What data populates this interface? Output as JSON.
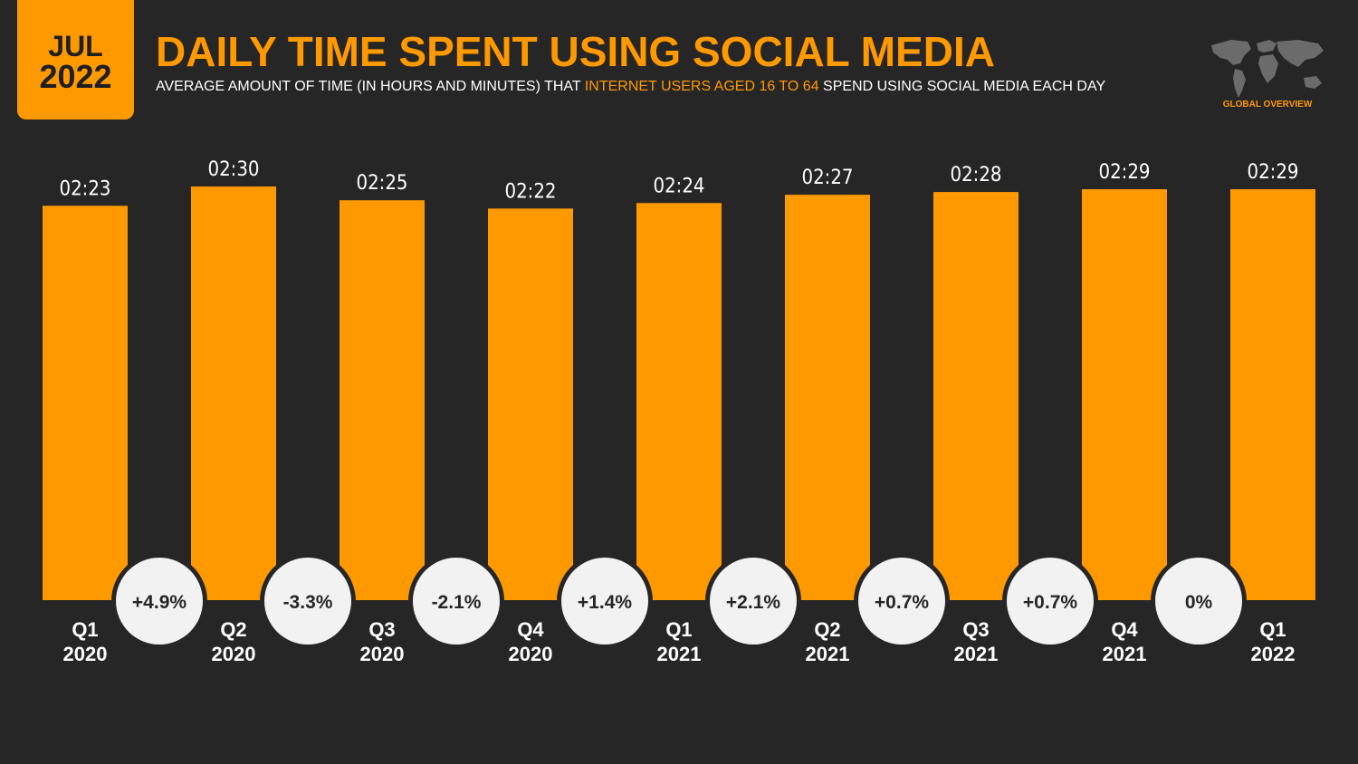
{
  "header": {
    "badge_month": "JUL",
    "badge_year": "2022",
    "title": "DAILY TIME SPENT USING SOCIAL MEDIA",
    "subtitle_pre": "AVERAGE AMOUNT OF TIME (IN HOURS AND MINUTES) THAT ",
    "subtitle_highlight": "INTERNET USERS AGED 16 TO 64",
    "subtitle_post": " SPEND USING SOCIAL MEDIA EACH DAY",
    "logo_label": "GLOBAL OVERVIEW",
    "logo_icon": "world-map-icon"
  },
  "colors": {
    "background": "#262626",
    "accent": "#FF9900",
    "circle": "#F2F2F2",
    "text": "#FFFFFF"
  },
  "chart_data": {
    "type": "bar",
    "categories": [
      [
        "Q1",
        "2020"
      ],
      [
        "Q2",
        "2020"
      ],
      [
        "Q3",
        "2020"
      ],
      [
        "Q4",
        "2020"
      ],
      [
        "Q1",
        "2021"
      ],
      [
        "Q2",
        "2021"
      ],
      [
        "Q3",
        "2021"
      ],
      [
        "Q4",
        "2021"
      ],
      [
        "Q1",
        "2022"
      ]
    ],
    "values_minutes": [
      143,
      150,
      145,
      142,
      144,
      147,
      148,
      149,
      149
    ],
    "value_labels": [
      "02:23",
      "02:30",
      "02:25",
      "02:22",
      "02:24",
      "02:27",
      "02:28",
      "02:29",
      "02:29"
    ],
    "changes": [
      "+4.9%",
      "-3.3%",
      "-2.1%",
      "+1.4%",
      "+2.1%",
      "+0.7%",
      "+0.7%",
      "0%"
    ],
    "ylim": [
      0,
      150
    ],
    "grid": false,
    "legend": "none"
  }
}
